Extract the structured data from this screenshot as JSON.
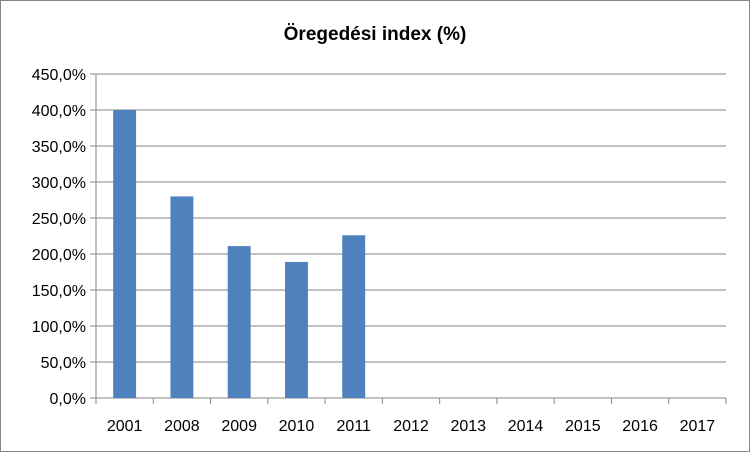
{
  "chart_data": {
    "type": "bar",
    "title": "Öregedési index (%)",
    "xlabel": "",
    "ylabel": "",
    "categories": [
      "2001",
      "2008",
      "2009",
      "2010",
      "2011",
      "2012",
      "2013",
      "2014",
      "2015",
      "2016",
      "2017"
    ],
    "values": [
      400,
      280,
      211,
      189,
      226,
      null,
      null,
      null,
      null,
      null,
      null
    ],
    "ylim": [
      0,
      450
    ],
    "yticks": [
      0,
      50,
      100,
      150,
      200,
      250,
      300,
      350,
      400,
      450
    ],
    "ytick_labels": [
      "0,0%",
      "50,0%",
      "100,0%",
      "150,0%",
      "200,0%",
      "250,0%",
      "300,0%",
      "350,0%",
      "400,0%",
      "450,0%"
    ],
    "grid": true,
    "legend": "none",
    "bar_color": "#4f81bd",
    "grid_color": "#868686"
  }
}
